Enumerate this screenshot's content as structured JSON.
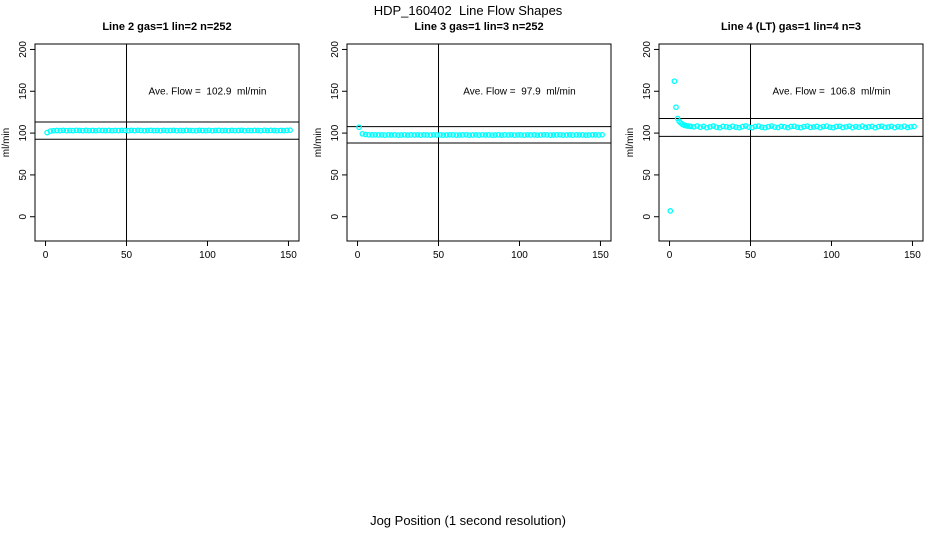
{
  "window": {
    "main_title": "HDP_160402  Line Flow Shapes",
    "x_axis_label": "Jog Position (1 second resolution)"
  },
  "chart_data": {
    "type": "scatter",
    "title": "HDP_160402  Line Flow Shapes",
    "xlabel": "Jog Position (1 second resolution)",
    "ylabel": "ml/min",
    "grid": false,
    "legend": "none",
    "point_color": "#00FFFF",
    "line_color": "#000000",
    "x_ticks": [
      0,
      50,
      100,
      150
    ],
    "y_ticks": [
      0,
      50,
      100,
      150,
      200
    ],
    "x_range": [
      -6.5,
      156.5
    ],
    "y_range": [
      -29,
      206.5
    ],
    "panels": [
      {
        "title": "Line 2 gas=1 lin=2 n=252",
        "ave_flow_ml_min": 102.9,
        "annotation": "Ave. Flow =  102.9  ml/min",
        "annotation_xy": [
          100,
          146
        ],
        "vline_x": 50,
        "hlines": [
          113.2,
          92.6
        ],
        "points": [
          [
            1,
            100.6
          ],
          [
            3,
            102.4
          ],
          [
            5,
            102.9
          ],
          [
            7,
            103.1
          ],
          [
            9,
            103.0
          ],
          [
            11,
            103.2
          ],
          [
            13,
            102.9
          ],
          [
            15,
            103.1
          ],
          [
            17,
            103.0
          ],
          [
            19,
            103.3
          ],
          [
            21,
            103.1
          ],
          [
            23,
            102.9
          ],
          [
            25,
            103.2
          ],
          [
            27,
            103.0
          ],
          [
            29,
            103.1
          ],
          [
            31,
            102.9
          ],
          [
            33,
            103.3
          ],
          [
            35,
            103.1
          ],
          [
            37,
            103.0
          ],
          [
            39,
            103.2
          ],
          [
            41,
            102.9
          ],
          [
            43,
            103.1
          ],
          [
            45,
            103.0
          ],
          [
            47,
            103.2
          ],
          [
            49,
            103.1
          ],
          [
            51,
            102.9
          ],
          [
            53,
            103.2
          ],
          [
            55,
            103.0
          ],
          [
            57,
            103.3
          ],
          [
            59,
            103.1
          ],
          [
            61,
            102.9
          ],
          [
            63,
            103.1
          ],
          [
            65,
            103.2
          ],
          [
            67,
            103.0
          ],
          [
            69,
            103.1
          ],
          [
            71,
            102.9
          ],
          [
            73,
            103.3
          ],
          [
            75,
            103.0
          ],
          [
            77,
            103.1
          ],
          [
            79,
            103.2
          ],
          [
            81,
            102.9
          ],
          [
            83,
            103.1
          ],
          [
            85,
            103.0
          ],
          [
            87,
            103.2
          ],
          [
            89,
            103.1
          ],
          [
            91,
            103.0
          ],
          [
            93,
            102.9
          ],
          [
            95,
            103.2
          ],
          [
            97,
            103.1
          ],
          [
            99,
            103.0
          ],
          [
            101,
            103.3
          ],
          [
            103,
            102.9
          ],
          [
            105,
            103.1
          ],
          [
            107,
            103.2
          ],
          [
            109,
            103.0
          ],
          [
            111,
            103.1
          ],
          [
            113,
            102.9
          ],
          [
            115,
            103.2
          ],
          [
            117,
            103.0
          ],
          [
            119,
            103.1
          ],
          [
            121,
            103.3
          ],
          [
            123,
            102.9
          ],
          [
            125,
            103.1
          ],
          [
            127,
            103.0
          ],
          [
            129,
            103.2
          ],
          [
            131,
            103.1
          ],
          [
            133,
            102.9
          ],
          [
            135,
            103.3
          ],
          [
            137,
            103.0
          ],
          [
            139,
            103.2
          ],
          [
            141,
            103.1
          ],
          [
            143,
            102.9
          ],
          [
            145,
            103.1
          ],
          [
            147,
            103.0
          ],
          [
            149,
            103.2
          ],
          [
            151,
            103.4
          ]
        ]
      },
      {
        "title": "Line 3 gas=1 lin=3 n=252",
        "ave_flow_ml_min": 97.9,
        "annotation": "Ave. Flow =  97.9  ml/min",
        "annotation_xy": [
          100,
          146
        ],
        "vline_x": 50,
        "hlines": [
          107.7,
          88.1
        ],
        "points": [
          [
            1,
            107.0
          ],
          [
            3,
            99.2
          ],
          [
            5,
            98.3
          ],
          [
            7,
            98.0
          ],
          [
            9,
            97.8
          ],
          [
            11,
            97.9
          ],
          [
            13,
            97.7
          ],
          [
            15,
            97.8
          ],
          [
            17,
            97.6
          ],
          [
            19,
            97.9
          ],
          [
            21,
            97.7
          ],
          [
            23,
            97.8
          ],
          [
            25,
            97.6
          ],
          [
            27,
            97.7
          ],
          [
            29,
            97.9
          ],
          [
            31,
            97.6
          ],
          [
            33,
            97.8
          ],
          [
            35,
            97.7
          ],
          [
            37,
            97.9
          ],
          [
            39,
            97.6
          ],
          [
            41,
            97.8
          ],
          [
            43,
            97.7
          ],
          [
            45,
            97.6
          ],
          [
            47,
            97.9
          ],
          [
            49,
            97.7
          ],
          [
            51,
            97.8
          ],
          [
            53,
            97.6
          ],
          [
            55,
            97.7
          ],
          [
            57,
            97.9
          ],
          [
            59,
            97.8
          ],
          [
            61,
            97.6
          ],
          [
            63,
            97.7
          ],
          [
            65,
            97.8
          ],
          [
            67,
            97.9
          ],
          [
            69,
            97.6
          ],
          [
            71,
            97.7
          ],
          [
            73,
            97.8
          ],
          [
            75,
            97.6
          ],
          [
            77,
            97.9
          ],
          [
            79,
            97.7
          ],
          [
            81,
            97.8
          ],
          [
            83,
            97.6
          ],
          [
            85,
            97.7
          ],
          [
            87,
            97.9
          ],
          [
            89,
            97.6
          ],
          [
            91,
            97.8
          ],
          [
            93,
            97.7
          ],
          [
            95,
            97.9
          ],
          [
            97,
            97.6
          ],
          [
            99,
            97.8
          ],
          [
            101,
            97.7
          ],
          [
            103,
            97.6
          ],
          [
            105,
            97.9
          ],
          [
            107,
            97.7
          ],
          [
            109,
            97.8
          ],
          [
            111,
            97.6
          ],
          [
            113,
            97.7
          ],
          [
            115,
            97.9
          ],
          [
            117,
            97.8
          ],
          [
            119,
            97.6
          ],
          [
            121,
            97.7
          ],
          [
            123,
            97.8
          ],
          [
            125,
            97.9
          ],
          [
            127,
            97.6
          ],
          [
            129,
            97.7
          ],
          [
            131,
            97.8
          ],
          [
            133,
            97.6
          ],
          [
            135,
            97.9
          ],
          [
            137,
            97.7
          ],
          [
            139,
            97.8
          ],
          [
            141,
            97.6
          ],
          [
            143,
            97.7
          ],
          [
            145,
            97.9
          ],
          [
            147,
            97.8
          ],
          [
            149,
            97.7
          ],
          [
            151,
            98.0
          ]
        ]
      },
      {
        "title": "Line 4 (LT) gas=1 lin=4 n=3",
        "ave_flow_ml_min": 106.8,
        "annotation": "Ave. Flow =  106.8  ml/min",
        "annotation_xy": [
          100,
          146
        ],
        "vline_x": 50,
        "hlines": [
          117.5,
          96.1
        ],
        "points": [
          [
            0.5,
            7
          ],
          [
            3,
            162
          ],
          [
            4,
            131
          ],
          [
            5,
            117.5
          ],
          [
            6,
            114
          ],
          [
            7,
            112
          ],
          [
            8,
            110.5
          ],
          [
            9,
            109.5
          ],
          [
            10,
            109
          ],
          [
            11,
            108.5
          ],
          [
            12,
            108.3
          ],
          [
            13,
            108
          ],
          [
            15,
            107.5
          ],
          [
            17,
            108.5
          ],
          [
            19,
            107
          ],
          [
            21,
            108
          ],
          [
            23,
            106.5
          ],
          [
            25,
            107.5
          ],
          [
            27,
            108.5
          ],
          [
            29,
            107
          ],
          [
            31,
            106.5
          ],
          [
            33,
            108
          ],
          [
            35,
            107.5
          ],
          [
            37,
            106.8
          ],
          [
            39,
            108.2
          ],
          [
            41,
            107
          ],
          [
            43,
            106.5
          ],
          [
            45,
            107.8
          ],
          [
            47,
            108.5
          ],
          [
            49,
            107.2
          ],
          [
            51,
            106.6
          ],
          [
            53,
            107.9
          ],
          [
            55,
            108.3
          ],
          [
            57,
            107
          ],
          [
            59,
            106.5
          ],
          [
            61,
            107.6
          ],
          [
            63,
            108.4
          ],
          [
            65,
            107.1
          ],
          [
            67,
            106.7
          ],
          [
            69,
            108
          ],
          [
            71,
            107.4
          ],
          [
            73,
            106.6
          ],
          [
            75,
            107.9
          ],
          [
            77,
            108.2
          ],
          [
            79,
            107
          ],
          [
            81,
            106.5
          ],
          [
            83,
            107.7
          ],
          [
            85,
            108.3
          ],
          [
            87,
            106.8
          ],
          [
            89,
            107.3
          ],
          [
            91,
            108
          ],
          [
            93,
            106.6
          ],
          [
            95,
            107.8
          ],
          [
            97,
            108.4
          ],
          [
            99,
            107
          ],
          [
            101,
            106.5
          ],
          [
            103,
            107.9
          ],
          [
            105,
            108.1
          ],
          [
            107,
            106.7
          ],
          [
            109,
            107.5
          ],
          [
            111,
            108.2
          ],
          [
            113,
            106.6
          ],
          [
            115,
            107.8
          ],
          [
            117,
            107
          ],
          [
            119,
            108.3
          ],
          [
            121,
            106.8
          ],
          [
            123,
            107.4
          ],
          [
            125,
            108
          ],
          [
            127,
            106.5
          ],
          [
            129,
            107.7
          ],
          [
            131,
            108.2
          ],
          [
            133,
            106.9
          ],
          [
            135,
            107.3
          ],
          [
            137,
            108
          ],
          [
            139,
            106.6
          ],
          [
            141,
            107.8
          ],
          [
            143,
            107.1
          ],
          [
            145,
            108.2
          ],
          [
            147,
            106.7
          ],
          [
            149,
            107.5
          ],
          [
            151,
            107.9
          ]
        ]
      }
    ]
  }
}
